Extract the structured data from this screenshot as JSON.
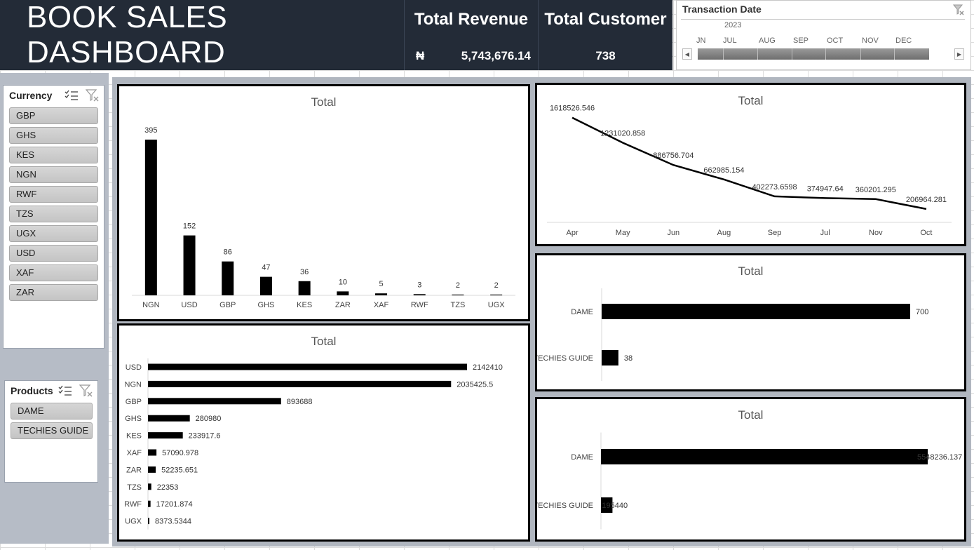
{
  "header": {
    "title": "BOOK SALES DASHBOARD",
    "kpis": {
      "revenue_title": "Total Revenue",
      "revenue_symbol": "₦",
      "revenue_value": "5,743,676.14",
      "customer_title": "Total Customer",
      "customer_value": "738"
    }
  },
  "timeline": {
    "title": "Transaction Date",
    "year": "2023",
    "months": [
      "JN",
      "JUL",
      "AUG",
      "SEP",
      "OCT",
      "NOV",
      "DEC"
    ]
  },
  "currency_slicer": {
    "title": "Currency",
    "items": [
      "GBP",
      "GHS",
      "KES",
      "NGN",
      "RWF",
      "TZS",
      "UGX",
      "USD",
      "XAF",
      "ZAR"
    ]
  },
  "products_slicer": {
    "title": "Products",
    "items": [
      "DAME",
      "TECHIES GUIDE"
    ]
  },
  "colors": {
    "header_bg": "#232b37",
    "bar": "#000000",
    "slicer_item": "#c8c8c8"
  },
  "chart_data": [
    {
      "id": "count-by-currency",
      "type": "bar",
      "title": "Total",
      "categories": [
        "NGN",
        "USD",
        "GBP",
        "GHS",
        "KES",
        "ZAR",
        "XAF",
        "RWF",
        "TZS",
        "UGX"
      ],
      "values": [
        395,
        152,
        86,
        47,
        36,
        10,
        5,
        3,
        2,
        2
      ],
      "ylim": [
        0,
        420
      ]
    },
    {
      "id": "revenue-by-currency",
      "type": "bar",
      "orientation": "horizontal",
      "title": "Total",
      "categories": [
        "USD",
        "NGN",
        "GBP",
        "GHS",
        "KES",
        "XAF",
        "ZAR",
        "TZS",
        "RWF",
        "UGX"
      ],
      "values": [
        2142410,
        2035425.5,
        893688,
        280980,
        233917.6,
        57090.978,
        52235.651,
        22353,
        17201.874,
        8373.5344
      ],
      "value_labels": [
        "2142410",
        "2035425.5",
        "893688",
        "280980",
        "233917.6",
        "57090.978",
        "52235.651",
        "22353",
        "17201.874",
        "8373.5344"
      ],
      "xlim": [
        0,
        2142410
      ]
    },
    {
      "id": "revenue-by-month",
      "type": "line",
      "title": "Total",
      "categories": [
        "Apr",
        "May",
        "Jun",
        "Aug",
        "Sep",
        "Jul",
        "Nov",
        "Oct"
      ],
      "values": [
        1618526.546,
        1231020.858,
        886756.704,
        662985.154,
        402273.6598,
        374947.64,
        360201.295,
        206964.281
      ],
      "value_labels": [
        "1618526.546",
        "1231020.858",
        "886756.704",
        "662985.154",
        "402273.6598",
        "374947.64",
        "360201.295",
        "206964.281"
      ],
      "ylim": [
        0,
        1800000
      ]
    },
    {
      "id": "count-by-product",
      "type": "bar",
      "orientation": "horizontal",
      "title": "Total",
      "categories": [
        "DAME",
        "TECHIES GUIDE"
      ],
      "values": [
        700,
        38
      ],
      "value_labels": [
        "700",
        "38"
      ],
      "xlim": [
        0,
        700
      ]
    },
    {
      "id": "revenue-by-product",
      "type": "bar",
      "orientation": "horizontal",
      "title": "Total",
      "categories": [
        "DAME",
        "TECHIES GUIDE"
      ],
      "values": [
        5548236.137,
        195440
      ],
      "value_labels": [
        "5548236.137",
        "195440"
      ],
      "xlim": [
        0,
        5548236.137
      ]
    }
  ]
}
